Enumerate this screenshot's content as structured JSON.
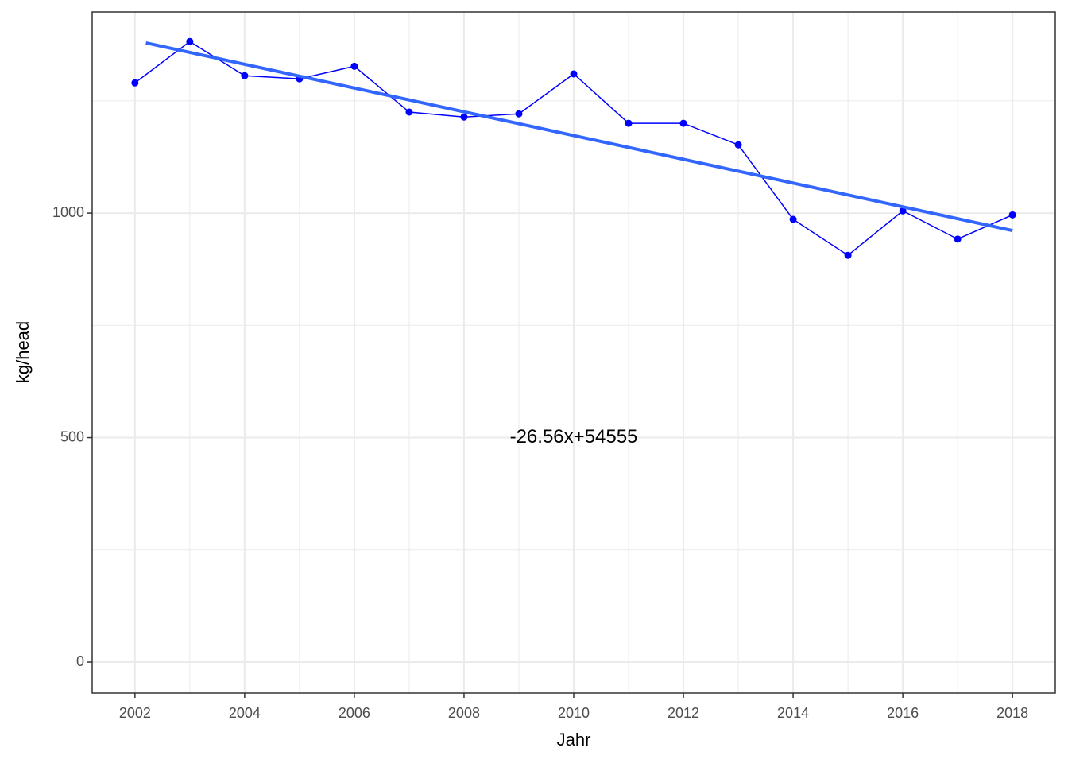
{
  "chart_data": {
    "type": "line",
    "x_label": "Jahr",
    "y_label": "kg/head",
    "x": [
      2002,
      2003,
      2004,
      2005,
      2006,
      2007,
      2008,
      2009,
      2010,
      2011,
      2012,
      2013,
      2014,
      2015,
      2016,
      2017,
      2018
    ],
    "series": [
      {
        "color": "#0000ff",
        "values": [
          1290,
          1382,
          1306,
          1299,
          1327,
          1225,
          1214,
          1221,
          1310,
          1200,
          1200,
          1152,
          986,
          906,
          1005,
          942,
          996
        ]
      }
    ],
    "trend_line": {
      "color": "#3366ff",
      "x": [
        2002.2,
        2018
      ],
      "values": [
        1379,
        961
      ]
    },
    "annotation": {
      "text": "-26.56x+54555",
      "x": 2010,
      "y": 500
    },
    "xlim": [
      2001.22,
      2018.78
    ],
    "ylim": [
      -69,
      1448
    ],
    "xticks": [
      2002,
      2004,
      2006,
      2008,
      2010,
      2012,
      2014,
      2016,
      2018
    ],
    "yticks": [
      0,
      500,
      1000
    ],
    "x_minor_grid": [
      2003,
      2005,
      2007,
      2009,
      2011,
      2013,
      2015,
      2017
    ],
    "y_minor_grid": [
      250,
      750,
      1250
    ],
    "grid": true
  }
}
